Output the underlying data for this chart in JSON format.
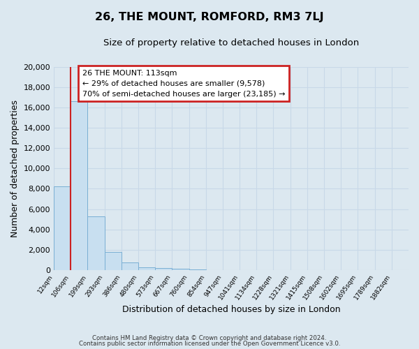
{
  "title": "26, THE MOUNT, ROMFORD, RM3 7LJ",
  "subtitle": "Size of property relative to detached houses in London",
  "xlabel": "Distribution of detached houses by size in London",
  "ylabel": "Number of detached properties",
  "bar_values": [
    8200,
    16600,
    5300,
    1750,
    750,
    280,
    200,
    100,
    80,
    0,
    0,
    0,
    0,
    0,
    0,
    0,
    0,
    0,
    0,
    0
  ],
  "bar_labels": [
    "12sqm",
    "106sqm",
    "199sqm",
    "293sqm",
    "386sqm",
    "480sqm",
    "573sqm",
    "667sqm",
    "760sqm",
    "854sqm",
    "947sqm",
    "1041sqm",
    "1134sqm",
    "1228sqm",
    "1321sqm",
    "1415sqm",
    "1508sqm",
    "1602sqm",
    "1695sqm",
    "1789sqm",
    "1882sqm"
  ],
  "bar_color": "#c8dff0",
  "bar_edge_color": "#7aafd4",
  "vline_color": "#cc2222",
  "ylim": [
    0,
    20000
  ],
  "yticks": [
    0,
    2000,
    4000,
    6000,
    8000,
    10000,
    12000,
    14000,
    16000,
    18000,
    20000
  ],
  "annotation_title": "26 THE MOUNT: 113sqm",
  "annotation_line1": "← 29% of detached houses are smaller (9,578)",
  "annotation_line2": "70% of semi-detached houses are larger (23,185) →",
  "annotation_box_color": "#ffffff",
  "annotation_box_edge": "#cc2222",
  "grid_color": "#c8d8e8",
  "background_color": "#dce8f0",
  "footnote1": "Contains HM Land Registry data © Crown copyright and database right 2024.",
  "footnote2": "Contains public sector information licensed under the Open Government Licence v3.0."
}
